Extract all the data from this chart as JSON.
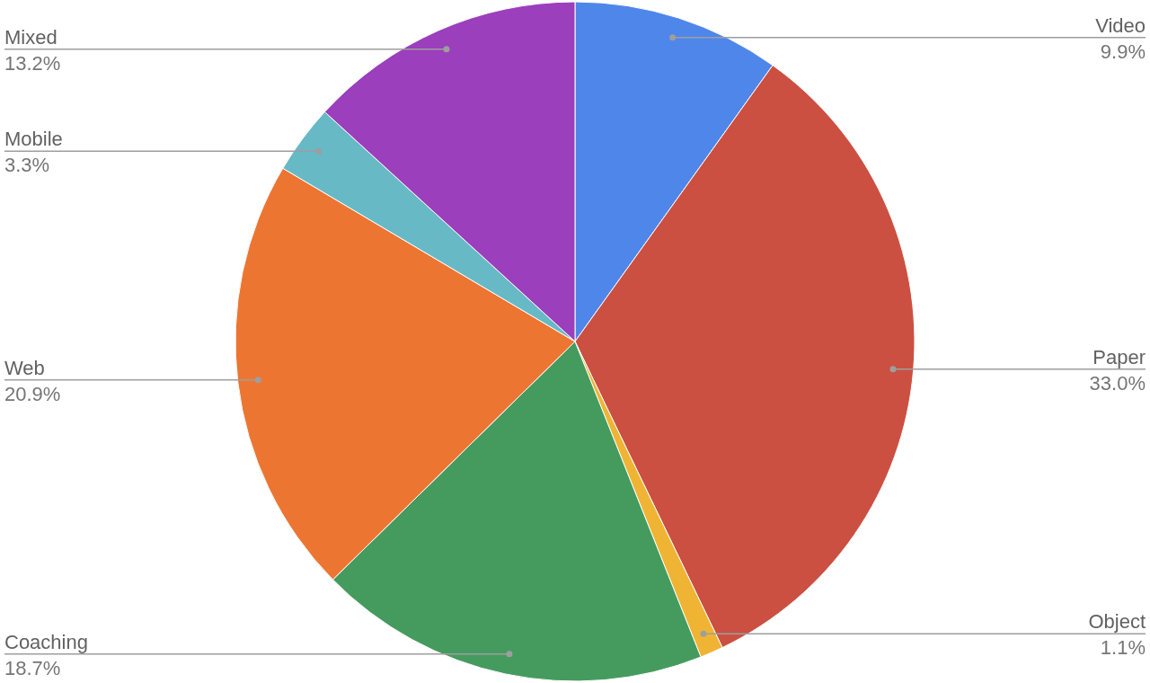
{
  "chart_data": {
    "type": "pie",
    "categories": [
      "Video",
      "Paper",
      "Object",
      "Coaching",
      "Web",
      "Mobile",
      "Mixed"
    ],
    "values": [
      9.9,
      33.0,
      1.1,
      18.7,
      20.9,
      3.3,
      13.2
    ],
    "colors": [
      "#4f86ea",
      "#cb5041",
      "#f0b434",
      "#459b5e",
      "#ed7532",
      "#67b9c6",
      "#9b3fbc"
    ],
    "value_labels": [
      "9.9%",
      "33.0%",
      "1.1%",
      "18.7%",
      "20.9%",
      "3.3%",
      "13.2%"
    ]
  }
}
